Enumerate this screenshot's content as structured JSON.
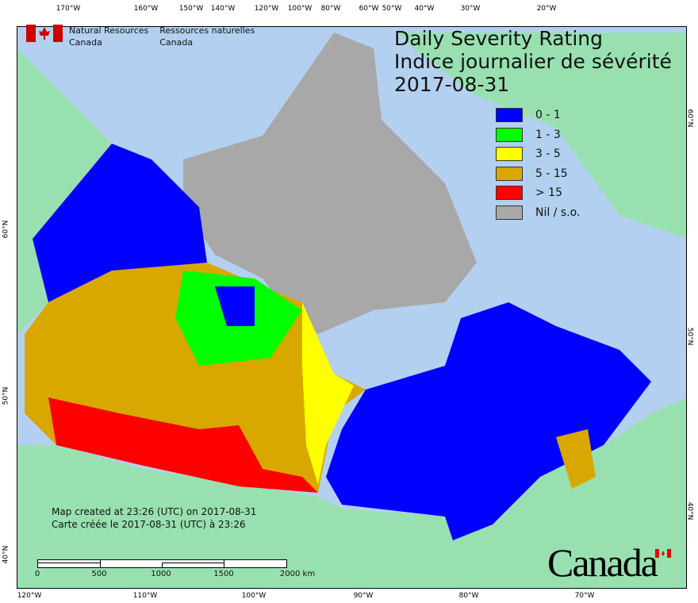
{
  "title": {
    "en": "Daily Severity Rating",
    "fr": "Indice journalier de sévérité",
    "date": "2017-08-31"
  },
  "agency": {
    "en": [
      "Natural Resources",
      "Canada"
    ],
    "fr": [
      "Ressources naturelles",
      "Canada"
    ]
  },
  "legend": [
    {
      "label": "0 - 1",
      "color": "#0000ff"
    },
    {
      "label": "1 - 3",
      "color": "#00ff00"
    },
    {
      "label": "3 - 5",
      "color": "#ffff00"
    },
    {
      "label": "5 - 15",
      "color": "#d8a800"
    },
    {
      "label": "> 15",
      "color": "#ff0000"
    },
    {
      "label": "Nil / s.o.",
      "color": "#a8a8a8"
    }
  ],
  "created": {
    "en": "Map created at 23:26 (UTC) on 2017-08-31",
    "fr": "Carte créée le 2017-08-31 (UTC) à 23:26"
  },
  "scale": {
    "labels": [
      "0",
      "500",
      "1000",
      "1500",
      "2000  km"
    ]
  },
  "axes": {
    "top": [
      "170°W",
      "160°W",
      "150°W",
      "140°W",
      "120°W",
      "100°W",
      "80°W",
      "60°W",
      "50°W",
      "40°W",
      "30°W",
      "20°W"
    ],
    "bottom": [
      "120°W",
      "110°W",
      "100°W",
      "90°W",
      "80°W",
      "70°W"
    ],
    "left": [
      "60°N",
      "50°N",
      "40°N"
    ],
    "right": [
      "60°N",
      "50°N",
      "40°N"
    ]
  },
  "wordmark": "Canada",
  "colors": {
    "water": "#b4d0f0",
    "foreign_land": "#98e0b0",
    "nil": "#a8a8a8"
  }
}
